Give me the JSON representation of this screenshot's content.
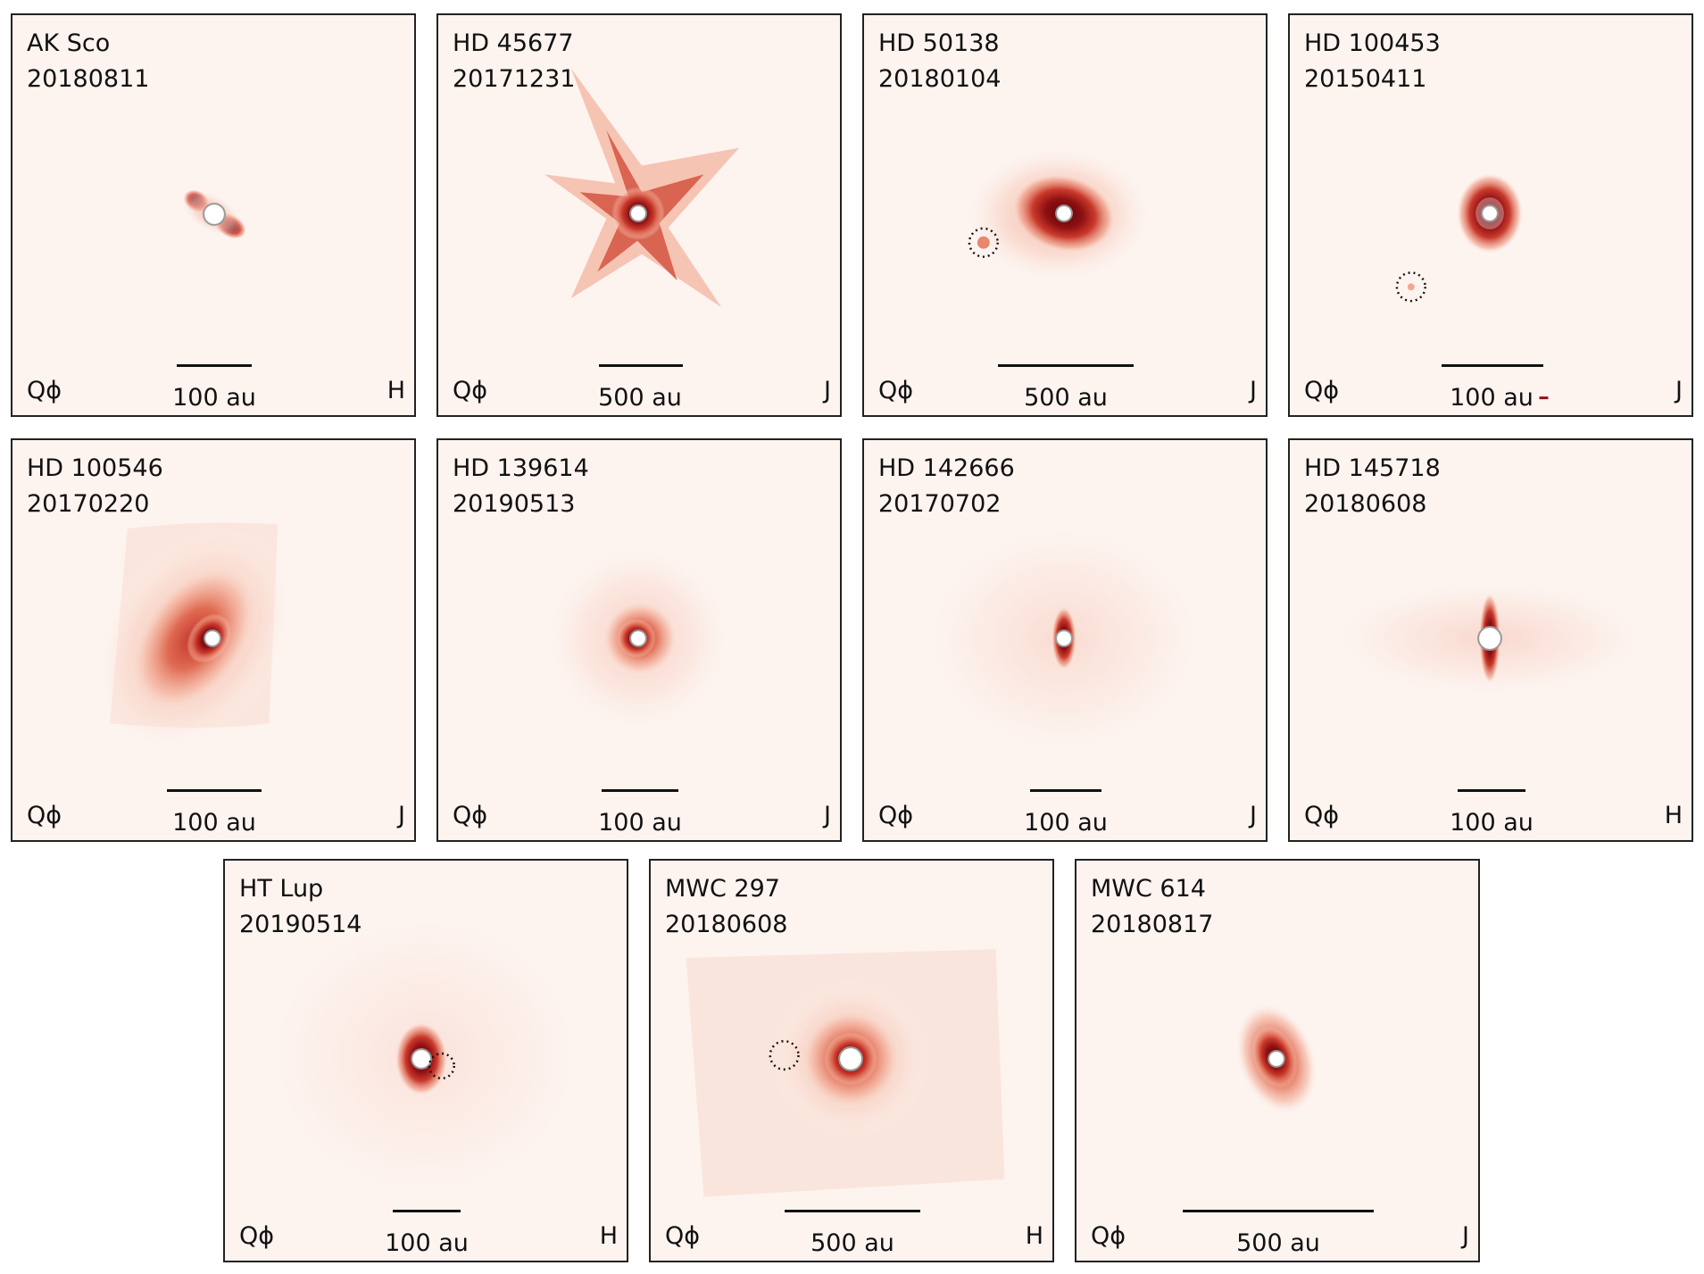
{
  "figure": {
    "panels": [
      {
        "name": "AK Sco",
        "date": "20180811",
        "stokes": "Qϕ",
        "scale_label": "100 au",
        "band": "H"
      },
      {
        "name": "HD 45677",
        "date": "20171231",
        "stokes": "Qϕ",
        "scale_label": "500 au",
        "band": "J"
      },
      {
        "name": "HD 50138",
        "date": "20180104",
        "stokes": "Qϕ",
        "scale_label": "500 au",
        "band": "J"
      },
      {
        "name": "HD 100453",
        "date": "20150411",
        "stokes": "Qϕ",
        "scale_label": "100 au",
        "band": "J"
      },
      {
        "name": "HD 100546",
        "date": "20170220",
        "stokes": "Qϕ",
        "scale_label": "100 au",
        "band": "J"
      },
      {
        "name": "HD 139614",
        "date": "20190513",
        "stokes": "Qϕ",
        "scale_label": "100 au",
        "band": "J"
      },
      {
        "name": "HD 142666",
        "date": "20170702",
        "stokes": "Qϕ",
        "scale_label": "100 au",
        "band": "J"
      },
      {
        "name": "HD 145718",
        "date": "20180608",
        "stokes": "Qϕ",
        "scale_label": "100 au",
        "band": "H"
      },
      {
        "name": "HT Lup",
        "date": "20190514",
        "stokes": "Qϕ",
        "scale_label": "100 au",
        "band": "H"
      },
      {
        "name": "MWC 297",
        "date": "20180608",
        "stokes": "Qϕ",
        "scale_label": "500 au",
        "band": "H"
      },
      {
        "name": "MWC 614",
        "date": "20180817",
        "stokes": "Qϕ",
        "scale_label": "500 au",
        "band": "J"
      }
    ]
  }
}
